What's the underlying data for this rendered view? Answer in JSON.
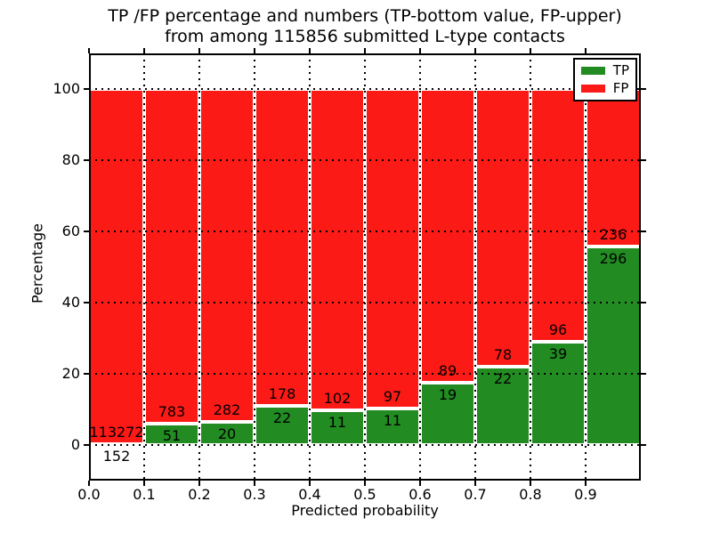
{
  "figure": {
    "title_line1": "TP /FP percentage and numbers (TP-bottom value, FP-upper)",
    "title_line2": "from among 115856 submitted L-type contacts"
  },
  "axes": {
    "xlabel": "Predicted probability",
    "ylabel": "Percentage",
    "xtick_labels": [
      "0.0",
      "0.1",
      "0.2",
      "0.3",
      "0.4",
      "0.5",
      "0.6",
      "0.7",
      "0.8",
      "0.9"
    ],
    "ytick_labels": [
      "0",
      "20",
      "40",
      "60",
      "80",
      "100"
    ],
    "ytick_values": [
      0,
      20,
      40,
      60,
      80,
      100
    ],
    "xlim": [
      0.0,
      1.0
    ],
    "ylim": [
      -10,
      110
    ],
    "grid_style": "dotted-black"
  },
  "legend": {
    "position": "upper-right",
    "entries": [
      {
        "label": "TP",
        "color": "#228b22"
      },
      {
        "label": "FP",
        "color": "#fc1a16"
      }
    ]
  },
  "chart_data": {
    "type": "bar",
    "stacked": true,
    "normalized": "each bar totals 100%",
    "title": "TP /FP percentage and numbers (TP-bottom value, FP-upper) from among 115856 submitted L-type contacts",
    "xlabel": "Predicted probability",
    "ylabel": "Percentage",
    "total_contacts": 115856,
    "bin_edges": [
      0.0,
      0.1,
      0.2,
      0.3,
      0.4,
      0.5,
      0.6,
      0.7,
      0.8,
      0.9,
      1.0
    ],
    "categories": [
      "0.0-0.1",
      "0.1-0.2",
      "0.2-0.3",
      "0.3-0.4",
      "0.4-0.5",
      "0.5-0.6",
      "0.6-0.7",
      "0.7-0.8",
      "0.8-0.9",
      "0.9-1.0"
    ],
    "series": [
      {
        "name": "TP",
        "color": "#228b22",
        "counts": [
          152,
          51,
          20,
          22,
          11,
          11,
          19,
          22,
          39,
          296
        ]
      },
      {
        "name": "FP",
        "color": "#fc1a16",
        "counts": [
          113272,
          783,
          282,
          178,
          102,
          97,
          89,
          78,
          96,
          236
        ]
      }
    ],
    "tp_percent_approx": [
      0.13,
      6.12,
      6.62,
      11.0,
      9.73,
      10.19,
      17.59,
      22.0,
      28.89,
      55.64
    ],
    "ylim": [
      -10,
      110
    ],
    "legend_position": "upper right",
    "grid": true
  }
}
